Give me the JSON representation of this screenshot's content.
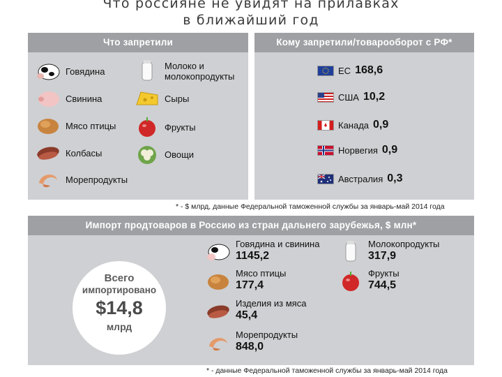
{
  "title": {
    "line1": "Что россияне не увидят на прилавках",
    "line2": "в ближайший год"
  },
  "banned": {
    "header": "Что запретили",
    "items": [
      {
        "label": "Говядина",
        "icon": "cow-icon"
      },
      {
        "label": "Молоко и молокопродукты",
        "icon": "milk-icon"
      },
      {
        "label": "Свинина",
        "icon": "pig-icon"
      },
      {
        "label": "Сыры",
        "icon": "cheese-icon"
      },
      {
        "label": "Мясо птицы",
        "icon": "chicken-icon"
      },
      {
        "label": "Фрукты",
        "icon": "apple-icon"
      },
      {
        "label": "Колбасы",
        "icon": "sausage-icon"
      },
      {
        "label": "Овощи",
        "icon": "cauliflower-icon"
      },
      {
        "label": "Морепродукты",
        "icon": "shrimp-icon"
      }
    ]
  },
  "turnover": {
    "header": "Кому запретили/товарооборот с РФ*",
    "items": [
      {
        "country": "ЕС",
        "value": "168,6",
        "icon": "eu-flag-icon"
      },
      {
        "country": "США",
        "value": "10,2",
        "icon": "us-flag-icon"
      },
      {
        "country": "Канада",
        "value": "0,9",
        "icon": "canada-flag-icon"
      },
      {
        "country": "Норвегия",
        "value": "0,9",
        "icon": "norway-flag-icon"
      },
      {
        "country": "Австралия",
        "value": "0,3",
        "icon": "australia-flag-icon"
      }
    ]
  },
  "footnote_top": "* - $ млрд, данные Федеральной таможенной службы за январь-май 2014 года",
  "imports": {
    "header": "Импорт продтоваров в Россию из стран дальнего зарубежья, $ млн*",
    "total": {
      "line1": "Всего",
      "line2": "импортировано",
      "amount": "$14,8",
      "unit": "млрд"
    },
    "items": [
      {
        "label": "Говядина и свинина",
        "value": "1145,2",
        "icon": "cow-pig-icon"
      },
      {
        "label": "Молокопродукты",
        "value": "317,9",
        "icon": "milk-icon"
      },
      {
        "label": "Мясо птицы",
        "value": "177,4",
        "icon": "chicken-icon"
      },
      {
        "label": "Фрукты",
        "value": "744,5",
        "icon": "apple-icon"
      },
      {
        "label": "Изделия из мяса",
        "value": "45,4",
        "icon": "sausage-icon"
      },
      {
        "label": "Морепродукты",
        "value": "848,0",
        "icon": "shrimp-icon"
      }
    ]
  },
  "footnote_bottom": "* - данные Федеральной таможенной службы за январь-май 2014 года"
}
